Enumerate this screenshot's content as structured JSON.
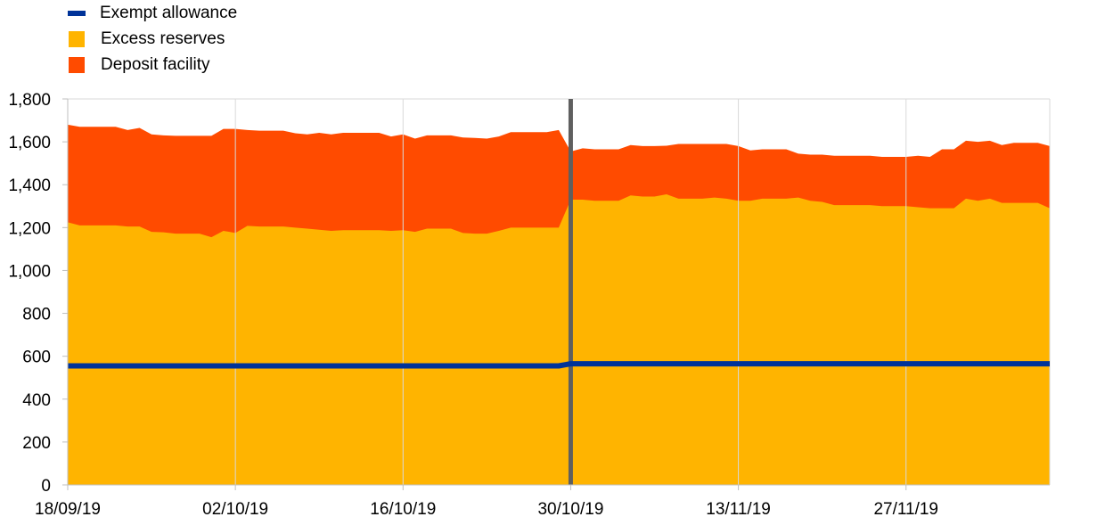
{
  "chart_data": {
    "type": "area",
    "legend": {
      "placement": "top-left",
      "items": [
        {
          "label": "Exempt allowance",
          "color": "#003399",
          "kind": "line"
        },
        {
          "label": "Excess reserves",
          "color": "#FFB400",
          "kind": "area"
        },
        {
          "label": "Deposit facility",
          "color": "#FF4B00",
          "kind": "area"
        }
      ]
    },
    "x_tick_labels": [
      "18/09/19",
      "02/10/19",
      "16/10/19",
      "30/10/19",
      "13/11/19",
      "27/11/19"
    ],
    "x_tick_day_index": [
      0,
      14,
      28,
      42,
      56,
      70
    ],
    "y_tick_labels": [
      "0",
      "200",
      "400",
      "600",
      "800",
      "1,000",
      "1,200",
      "1,400",
      "1,600",
      "1,800"
    ],
    "ylim": [
      0,
      1800
    ],
    "xlim_day_index": [
      0,
      82
    ],
    "grid": "vertical at x ticks, horizontal top border",
    "regime_change_marker_day_index": 42,
    "series": [
      {
        "name": "Exempt allowance",
        "type": "line",
        "color": "#003399",
        "points": [
          [
            0,
            555
          ],
          [
            41,
            555
          ],
          [
            42,
            565
          ],
          [
            82,
            565
          ]
        ]
      },
      {
        "name": "Excess reserves",
        "type": "area",
        "color": "#FFB400",
        "points": [
          [
            0,
            1225
          ],
          [
            1,
            1210
          ],
          [
            2,
            1210
          ],
          [
            3,
            1210
          ],
          [
            4,
            1210
          ],
          [
            5,
            1205
          ],
          [
            6,
            1205
          ],
          [
            7,
            1180
          ],
          [
            8,
            1178
          ],
          [
            9,
            1172
          ],
          [
            10,
            1172
          ],
          [
            11,
            1172
          ],
          [
            12,
            1155
          ],
          [
            13,
            1185
          ],
          [
            14,
            1175
          ],
          [
            15,
            1208
          ],
          [
            16,
            1205
          ],
          [
            17,
            1205
          ],
          [
            18,
            1205
          ],
          [
            19,
            1200
          ],
          [
            20,
            1195
          ],
          [
            21,
            1190
          ],
          [
            22,
            1185
          ],
          [
            23,
            1188
          ],
          [
            24,
            1188
          ],
          [
            25,
            1188
          ],
          [
            26,
            1188
          ],
          [
            27,
            1185
          ],
          [
            28,
            1188
          ],
          [
            29,
            1180
          ],
          [
            30,
            1195
          ],
          [
            31,
            1195
          ],
          [
            32,
            1195
          ],
          [
            33,
            1175
          ],
          [
            34,
            1172
          ],
          [
            35,
            1172
          ],
          [
            36,
            1185
          ],
          [
            37,
            1200
          ],
          [
            38,
            1200
          ],
          [
            39,
            1200
          ],
          [
            40,
            1200
          ],
          [
            41,
            1200
          ],
          [
            42,
            1330
          ],
          [
            43,
            1330
          ],
          [
            44,
            1325
          ],
          [
            45,
            1325
          ],
          [
            46,
            1325
          ],
          [
            47,
            1350
          ],
          [
            48,
            1345
          ],
          [
            49,
            1345
          ],
          [
            50,
            1355
          ],
          [
            51,
            1335
          ],
          [
            52,
            1335
          ],
          [
            53,
            1335
          ],
          [
            54,
            1340
          ],
          [
            55,
            1335
          ],
          [
            56,
            1325
          ],
          [
            57,
            1325
          ],
          [
            58,
            1335
          ],
          [
            59,
            1335
          ],
          [
            60,
            1335
          ],
          [
            61,
            1340
          ],
          [
            62,
            1325
          ],
          [
            63,
            1320
          ],
          [
            64,
            1305
          ],
          [
            65,
            1305
          ],
          [
            66,
            1305
          ],
          [
            67,
            1305
          ],
          [
            68,
            1300
          ],
          [
            69,
            1300
          ],
          [
            70,
            1300
          ],
          [
            71,
            1295
          ],
          [
            72,
            1290
          ],
          [
            73,
            1290
          ],
          [
            74,
            1290
          ],
          [
            75,
            1335
          ],
          [
            76,
            1325
          ],
          [
            77,
            1335
          ],
          [
            78,
            1315
          ],
          [
            79,
            1315
          ],
          [
            80,
            1315
          ],
          [
            81,
            1315
          ],
          [
            82,
            1290
          ]
        ]
      },
      {
        "name": "Deposit facility",
        "type": "area",
        "color": "#FF4B00",
        "points": [
          [
            0,
            1680
          ],
          [
            1,
            1670
          ],
          [
            2,
            1670
          ],
          [
            3,
            1670
          ],
          [
            4,
            1670
          ],
          [
            5,
            1655
          ],
          [
            6,
            1665
          ],
          [
            7,
            1635
          ],
          [
            8,
            1630
          ],
          [
            9,
            1628
          ],
          [
            10,
            1628
          ],
          [
            11,
            1628
          ],
          [
            12,
            1628
          ],
          [
            13,
            1660
          ],
          [
            14,
            1660
          ],
          [
            15,
            1655
          ],
          [
            16,
            1652
          ],
          [
            17,
            1652
          ],
          [
            18,
            1652
          ],
          [
            19,
            1640
          ],
          [
            20,
            1635
          ],
          [
            21,
            1642
          ],
          [
            22,
            1635
          ],
          [
            23,
            1642
          ],
          [
            24,
            1642
          ],
          [
            25,
            1642
          ],
          [
            26,
            1642
          ],
          [
            27,
            1625
          ],
          [
            28,
            1635
          ],
          [
            29,
            1615
          ],
          [
            30,
            1630
          ],
          [
            31,
            1630
          ],
          [
            32,
            1630
          ],
          [
            33,
            1620
          ],
          [
            34,
            1618
          ],
          [
            35,
            1615
          ],
          [
            36,
            1625
          ],
          [
            37,
            1645
          ],
          [
            38,
            1645
          ],
          [
            39,
            1645
          ],
          [
            40,
            1645
          ],
          [
            41,
            1655
          ],
          [
            42,
            1555
          ],
          [
            43,
            1570
          ],
          [
            44,
            1565
          ],
          [
            45,
            1565
          ],
          [
            46,
            1565
          ],
          [
            47,
            1585
          ],
          [
            48,
            1580
          ],
          [
            49,
            1580
          ],
          [
            50,
            1582
          ],
          [
            51,
            1590
          ],
          [
            52,
            1590
          ],
          [
            53,
            1590
          ],
          [
            54,
            1590
          ],
          [
            55,
            1590
          ],
          [
            56,
            1580
          ],
          [
            57,
            1560
          ],
          [
            58,
            1565
          ],
          [
            59,
            1565
          ],
          [
            60,
            1565
          ],
          [
            61,
            1545
          ],
          [
            62,
            1540
          ],
          [
            63,
            1540
          ],
          [
            64,
            1535
          ],
          [
            65,
            1535
          ],
          [
            66,
            1535
          ],
          [
            67,
            1535
          ],
          [
            68,
            1530
          ],
          [
            69,
            1530
          ],
          [
            70,
            1530
          ],
          [
            71,
            1535
          ],
          [
            72,
            1530
          ],
          [
            73,
            1565
          ],
          [
            74,
            1565
          ],
          [
            75,
            1605
          ],
          [
            76,
            1600
          ],
          [
            77,
            1605
          ],
          [
            78,
            1585
          ],
          [
            79,
            1595
          ],
          [
            80,
            1595
          ],
          [
            81,
            1595
          ],
          [
            82,
            1580
          ]
        ]
      }
    ]
  }
}
